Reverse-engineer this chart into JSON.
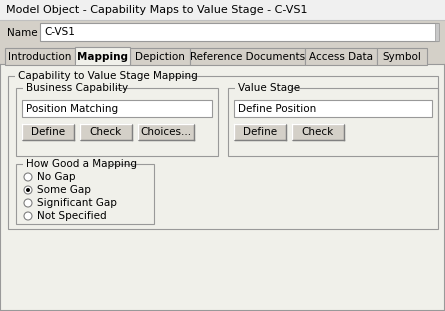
{
  "title": "Model Object - Capability Maps to Value Stage - C-VS1",
  "bg_color": "#d4d0c8",
  "name_label": "Name",
  "name_value": "C-VS1",
  "tabs": [
    "Introduction",
    "Mapping",
    "Depiction",
    "Reference Documents",
    "Access Data",
    "Symbol"
  ],
  "active_tab": "Mapping",
  "outer_group_label": "Capability to Value Stage Mapping",
  "biz_cap_label": "Business Capability",
  "biz_cap_value": "Position Matching",
  "biz_buttons": [
    "Define",
    "Check",
    "Choices..."
  ],
  "val_stage_label": "Value Stage",
  "val_stage_value": "Define Position",
  "val_buttons": [
    "Define",
    "Check"
  ],
  "mapping_group_label": "How Good a Mapping",
  "radio_options": [
    "No Gap",
    "Some Gap",
    "Significant Gap",
    "Not Specified"
  ],
  "selected_radio": 1,
  "panel_bg": "#f0f0ea",
  "border_color": "#999999",
  "button_bg": "#d4d0c8",
  "textbox_bg": "#ffffff",
  "title_bar_bg": "#f0f0f0",
  "title_bar_border": "#c0c0c0",
  "tab_font_size": 7.5,
  "body_font_size": 7.5,
  "title_font_size": 8.0
}
